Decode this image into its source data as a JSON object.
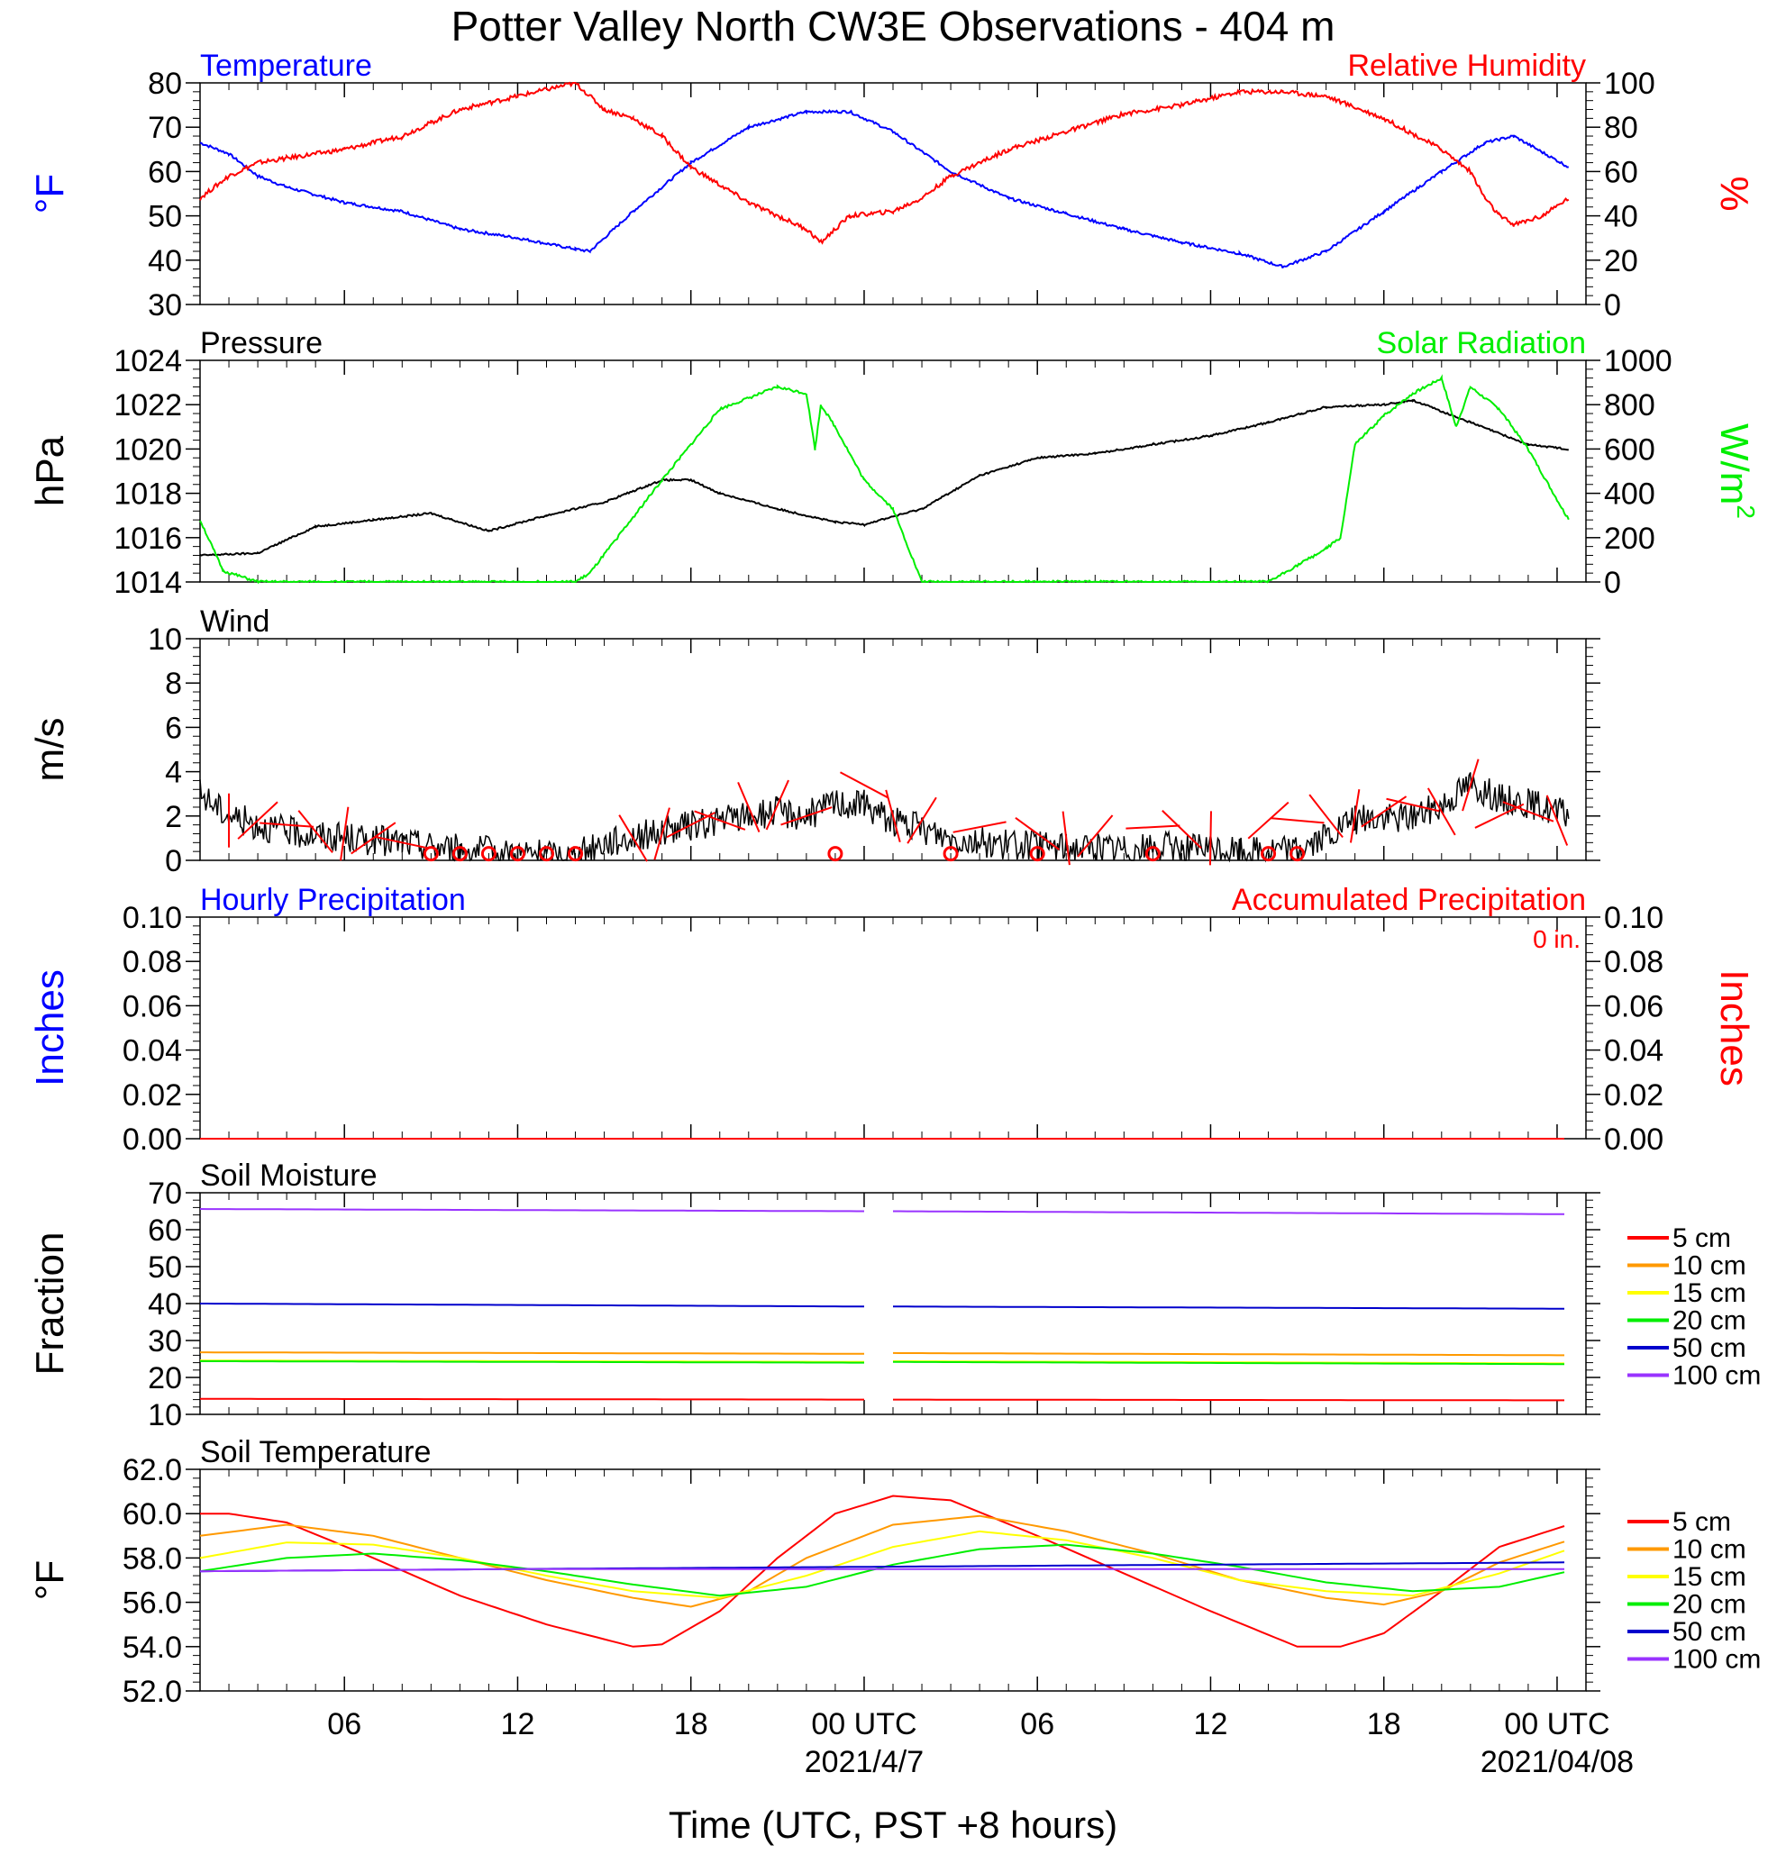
{
  "title": "Potter Valley North CW3E Observations - 404 m",
  "colors": {
    "blue": "#0000ff",
    "red": "#ff0000",
    "green": "#00ee00",
    "black": "#000000",
    "orange": "#ff9900",
    "yellow": "#ffff00",
    "purple": "#9933ff",
    "darkblue": "#0000cc"
  },
  "x_axis": {
    "label": "Time (UTC, PST +8 hours)",
    "ticks": [
      {
        "hour": 6,
        "label": "06"
      },
      {
        "hour": 12,
        "label": "12"
      },
      {
        "hour": 18,
        "label": "18"
      },
      {
        "hour": 24,
        "label": "00 UTC",
        "date": "2021/4/7"
      },
      {
        "hour": 30,
        "label": "06"
      },
      {
        "hour": 36,
        "label": "12"
      },
      {
        "hour": 42,
        "label": "18"
      },
      {
        "hour": 48,
        "label": "00 UTC",
        "date": "2021/04/08"
      }
    ],
    "range_hours": [
      1,
      49
    ]
  },
  "chart_data": [
    {
      "type": "line",
      "panel": "temperature-humidity",
      "left_title": "Temperature",
      "right_title": "Relative Humidity",
      "left_ylabel": "°F",
      "right_ylabel": "%",
      "left_ylim": [
        30,
        80
      ],
      "left_ticks": [
        "30",
        "40",
        "50",
        "60",
        "70",
        "80"
      ],
      "right_ylim": [
        0,
        100
      ],
      "right_ticks": [
        "0",
        "20",
        "40",
        "60",
        "80",
        "100"
      ],
      "series": [
        {
          "name": "Temperature",
          "axis": "left",
          "color": "#0000ff",
          "x": [
            1,
            2,
            3,
            4,
            6,
            8,
            10,
            12,
            14,
            14.5,
            16,
            18,
            20,
            22,
            23.5,
            25,
            27,
            29,
            31,
            33,
            35,
            37,
            38.5,
            40,
            42,
            44,
            45.5,
            46.5,
            48.4
          ],
          "y": [
            66.5,
            64,
            59,
            56.5,
            53,
            51,
            47,
            45,
            42.5,
            42,
            51,
            62,
            70,
            73.5,
            73.5,
            69,
            60,
            54,
            50.5,
            47,
            44,
            41.5,
            38.5,
            42,
            51,
            60,
            66.5,
            68,
            61
          ]
        },
        {
          "name": "Relative Humidity",
          "axis": "right",
          "color": "#ff0000",
          "x": [
            1,
            2,
            3,
            4,
            6,
            8,
            9,
            10,
            12,
            14,
            15,
            16,
            17,
            18,
            20,
            22,
            22.5,
            23.5,
            25,
            26,
            27,
            29,
            31,
            33,
            35,
            37,
            38.5,
            40,
            42,
            44,
            45,
            45.5,
            46,
            46.5,
            47.5,
            48.4
          ],
          "y": [
            48,
            58,
            64,
            66,
            70,
            76,
            82,
            88,
            94,
            100,
            88,
            84,
            76,
            62,
            46,
            34,
            28,
            40,
            42,
            48,
            58,
            70,
            78,
            86,
            90,
            96,
            96,
            94,
            84,
            70,
            60,
            48,
            40,
            36,
            40,
            48
          ]
        }
      ]
    },
    {
      "type": "line",
      "panel": "pressure-solar",
      "left_title": "Pressure",
      "right_title": "Solar Radiation",
      "left_ylabel": "hPa",
      "right_ylabel_base": "W/m",
      "right_ylabel_sup": "2",
      "left_ylim": [
        1014,
        1024
      ],
      "left_ticks": [
        "1014",
        "1016",
        "1018",
        "1020",
        "1022",
        "1024"
      ],
      "right_ylim": [
        0,
        1000
      ],
      "right_ticks": [
        "0",
        "200",
        "400",
        "600",
        "800",
        "1000"
      ],
      "series": [
        {
          "name": "Pressure",
          "axis": "left",
          "color": "#000000",
          "x": [
            1,
            3,
            5,
            7,
            9,
            11,
            13,
            15,
            17,
            18,
            19,
            21,
            23,
            24,
            26,
            28,
            30,
            32,
            34,
            36,
            38,
            40,
            42,
            43,
            45,
            47,
            48.4
          ],
          "y": [
            1015.2,
            1015.3,
            1016.5,
            1016.8,
            1017.1,
            1016.3,
            1017.0,
            1017.6,
            1018.6,
            1018.6,
            1018.0,
            1017.3,
            1016.7,
            1016.6,
            1017.3,
            1018.8,
            1019.6,
            1019.8,
            1020.2,
            1020.6,
            1021.2,
            1021.9,
            1022.0,
            1022.2,
            1021.2,
            1020.2,
            1020.0
          ]
        },
        {
          "name": "Solar Radiation",
          "axis": "right",
          "color": "#00ee00",
          "x": [
            1,
            1.8,
            3,
            14,
            14.5,
            17,
            19,
            21,
            22,
            22.3,
            22.5,
            23,
            24,
            25,
            26,
            27,
            30,
            36,
            38,
            40,
            40.5,
            41,
            42,
            43,
            44,
            44.5,
            45,
            46,
            47,
            48.4
          ],
          "y": [
            280,
            50,
            0,
            0,
            40,
            460,
            780,
            880,
            850,
            600,
            800,
            700,
            460,
            330,
            0,
            0,
            0,
            0,
            0,
            150,
            200,
            620,
            750,
            850,
            920,
            700,
            880,
            780,
            600,
            280
          ]
        }
      ]
    },
    {
      "type": "line",
      "panel": "wind",
      "left_title": "Wind",
      "left_ylabel": "m/s",
      "left_ylim": [
        0,
        10
      ],
      "left_ticks": [
        "0",
        "2",
        "4",
        "6",
        "8",
        "10"
      ],
      "series": [
        {
          "name": "Wind",
          "axis": "left",
          "color": "#000000",
          "x": [
            1,
            2,
            3,
            4,
            6,
            8,
            10,
            12,
            14,
            15,
            17,
            19,
            21,
            22,
            23,
            24,
            25,
            27,
            29,
            31,
            33,
            35,
            37,
            39,
            40,
            41,
            43,
            44,
            45,
            46,
            47,
            48.4
          ],
          "y": [
            3.0,
            2.0,
            1.6,
            1.3,
            1.0,
            0.8,
            0.5,
            0.3,
            0.2,
            0.8,
            1.3,
            1.8,
            2.2,
            2.0,
            2.6,
            2.5,
            1.8,
            1.0,
            0.7,
            0.6,
            0.5,
            0.6,
            0.4,
            0.5,
            1.0,
            1.8,
            2.0,
            2.5,
            3.5,
            2.8,
            2.6,
            2.0
          ]
        }
      ],
      "barbs": [
        {
          "x": 2,
          "y": 1.8
        },
        {
          "x": 3,
          "y": 1.8
        },
        {
          "x": 4,
          "y": 1.6
        },
        {
          "x": 5,
          "y": 1.3
        },
        {
          "x": 6,
          "y": 1.2
        },
        {
          "x": 7,
          "y": 1.0
        },
        {
          "x": 8,
          "y": 0.8
        },
        {
          "x": 16,
          "y": 1.0
        },
        {
          "x": 17,
          "y": 1.2
        },
        {
          "x": 18,
          "y": 1.6
        },
        {
          "x": 19,
          "y": 1.8
        },
        {
          "x": 20,
          "y": 2.4
        },
        {
          "x": 21,
          "y": 2.5
        },
        {
          "x": 22,
          "y": 2.0
        },
        {
          "x": 24,
          "y": 3.4
        },
        {
          "x": 25,
          "y": 2.0
        },
        {
          "x": 26,
          "y": 1.8
        },
        {
          "x": 28,
          "y": 1.5
        },
        {
          "x": 30,
          "y": 1.2
        },
        {
          "x": 31,
          "y": 1.0
        },
        {
          "x": 32,
          "y": 1.1
        },
        {
          "x": 34,
          "y": 1.5
        },
        {
          "x": 35,
          "y": 1.4
        },
        {
          "x": 36,
          "y": 1.0
        },
        {
          "x": 38,
          "y": 1.8
        },
        {
          "x": 39,
          "y": 1.8
        },
        {
          "x": 40,
          "y": 2.0
        },
        {
          "x": 41,
          "y": 2.0
        },
        {
          "x": 42,
          "y": 2.2
        },
        {
          "x": 43,
          "y": 2.5
        },
        {
          "x": 44,
          "y": 2.2
        },
        {
          "x": 45,
          "y": 3.4
        },
        {
          "x": 46,
          "y": 2.0
        },
        {
          "x": 47,
          "y": 2.2
        },
        {
          "x": 48,
          "y": 1.8
        }
      ],
      "calm": [
        9,
        10,
        11,
        12,
        13,
        14,
        23,
        27,
        30,
        34,
        38,
        39
      ]
    },
    {
      "type": "line",
      "panel": "precipitation",
      "left_title": "Hourly Precipitation",
      "right_title": "Accumulated Precipitation",
      "annotation": "0 in.",
      "left_ylabel": "Inches",
      "right_ylabel": "Inches",
      "left_ylim": [
        0,
        0.1
      ],
      "left_ticks": [
        "0.00",
        "0.02",
        "0.04",
        "0.06",
        "0.08",
        "0.10"
      ],
      "right_ylim": [
        0,
        0.1
      ],
      "right_ticks": [
        "0.00",
        "0.02",
        "0.04",
        "0.06",
        "0.08",
        "0.10"
      ],
      "series": [
        {
          "name": "Hourly Precipitation",
          "axis": "left",
          "color": "#0000ff",
          "x": [
            1,
            48.4
          ],
          "y": [
            0,
            0
          ]
        },
        {
          "name": "Accumulated Precipitation",
          "axis": "right",
          "color": "#ff0000",
          "x": [
            1,
            48.4
          ],
          "y": [
            0,
            0
          ]
        }
      ]
    },
    {
      "type": "line",
      "panel": "soil-moisture",
      "left_title": "Soil Moisture",
      "left_ylabel": "Fraction",
      "left_ylim": [
        10,
        70
      ],
      "left_ticks": [
        "10",
        "20",
        "30",
        "40",
        "50",
        "60",
        "70"
      ],
      "gap_hours": [
        24,
        25
      ],
      "series": [
        {
          "name": "5 cm",
          "color": "#ff0000",
          "x": [
            1,
            24,
            25,
            48.4
          ],
          "y": [
            14.2,
            14.0,
            14.0,
            13.8
          ]
        },
        {
          "name": "10 cm",
          "color": "#ff9900",
          "x": [
            1,
            24,
            25,
            48.4
          ],
          "y": [
            26.8,
            26.4,
            26.6,
            26.0
          ]
        },
        {
          "name": "15 cm",
          "color": "#ffff00",
          "x": [
            1,
            24,
            25,
            48.4
          ],
          "y": [
            24.6,
            24.2,
            24.4,
            23.8
          ]
        },
        {
          "name": "20 cm",
          "color": "#00ee00",
          "x": [
            1,
            24,
            25,
            48.4
          ],
          "y": [
            24.4,
            24.0,
            24.2,
            23.6
          ]
        },
        {
          "name": "50 cm",
          "color": "#0000cc",
          "x": [
            1,
            24,
            25,
            48.4
          ],
          "y": [
            40.0,
            39.2,
            39.2,
            38.6
          ]
        },
        {
          "name": "100 cm",
          "color": "#9933ff",
          "x": [
            1,
            24,
            25,
            48.4
          ],
          "y": [
            65.6,
            65.0,
            65.0,
            64.2
          ]
        }
      ]
    },
    {
      "type": "line",
      "panel": "soil-temperature",
      "left_title": "Soil Temperature",
      "left_ylabel": "°F",
      "left_ylim": [
        52,
        62
      ],
      "left_ticks": [
        "52.0",
        "54.0",
        "56.0",
        "58.0",
        "60.0",
        "62.0"
      ],
      "series": [
        {
          "name": "5 cm",
          "color": "#ff0000",
          "x": [
            1,
            2,
            4,
            7,
            10,
            13,
            16,
            17,
            19,
            21,
            23,
            25,
            27,
            30,
            33,
            36,
            39,
            40.5,
            42,
            44,
            46,
            48.4
          ],
          "y": [
            60.0,
            60.0,
            59.6,
            58.0,
            56.3,
            55.0,
            54.0,
            54.1,
            55.6,
            58.0,
            60.0,
            60.8,
            60.6,
            59.0,
            57.3,
            55.6,
            54.0,
            54.0,
            54.6,
            56.5,
            58.5,
            59.5
          ]
        },
        {
          "name": "10 cm",
          "color": "#ff9900",
          "x": [
            1,
            4,
            7,
            10,
            13,
            16,
            18,
            20,
            22,
            25,
            28,
            31,
            34,
            37,
            40,
            42,
            44,
            46,
            48.4
          ],
          "y": [
            59.0,
            59.5,
            59.0,
            58.0,
            57.0,
            56.2,
            55.8,
            56.5,
            58.0,
            59.5,
            59.9,
            59.2,
            58.2,
            57.0,
            56.2,
            55.9,
            56.5,
            57.8,
            58.8
          ]
        },
        {
          "name": "15 cm",
          "color": "#ffff00",
          "x": [
            1,
            4,
            7,
            10,
            13,
            16,
            19,
            22,
            25,
            28,
            31,
            34,
            37,
            40,
            43,
            46,
            48.4
          ],
          "y": [
            58.0,
            58.7,
            58.6,
            58.0,
            57.2,
            56.5,
            56.2,
            57.2,
            58.5,
            59.2,
            58.8,
            58.0,
            57.0,
            56.5,
            56.3,
            57.3,
            58.4
          ]
        },
        {
          "name": "20 cm",
          "color": "#00ee00",
          "x": [
            1,
            4,
            7,
            10,
            13,
            16,
            19,
            22,
            25,
            28,
            31,
            34,
            37,
            40,
            43,
            46,
            48.4
          ],
          "y": [
            57.4,
            58.0,
            58.2,
            57.9,
            57.4,
            56.8,
            56.3,
            56.7,
            57.7,
            58.4,
            58.6,
            58.2,
            57.6,
            56.9,
            56.5,
            56.7,
            57.4
          ]
        },
        {
          "name": "50 cm",
          "color": "#0000cc",
          "x": [
            1,
            12,
            24,
            36,
            48.4
          ],
          "y": [
            57.4,
            57.5,
            57.6,
            57.7,
            57.8
          ]
        },
        {
          "name": "100 cm",
          "color": "#9933ff",
          "x": [
            1,
            12,
            24,
            36,
            48.4
          ],
          "y": [
            57.4,
            57.5,
            57.5,
            57.5,
            57.5
          ]
        }
      ]
    }
  ]
}
